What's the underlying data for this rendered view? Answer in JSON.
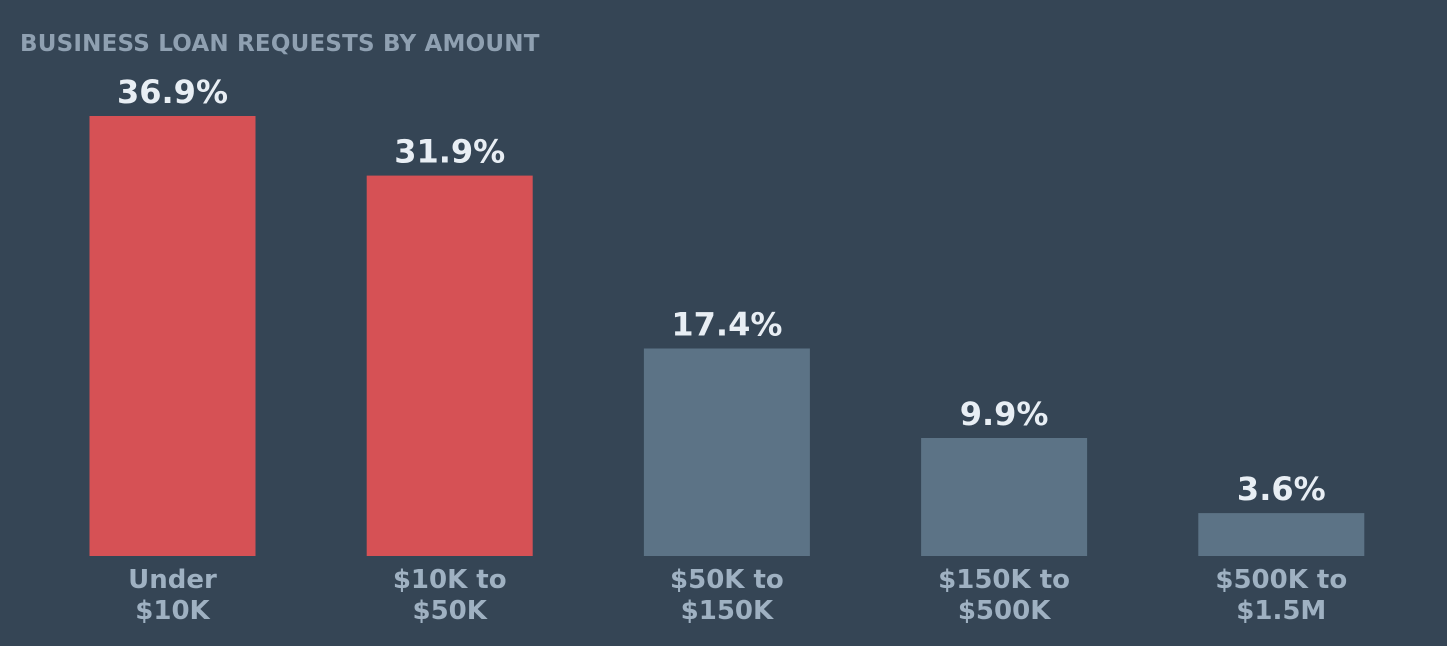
{
  "chart_data": {
    "type": "bar",
    "title": "BUSINESS LOAN REQUESTS BY AMOUNT",
    "categories": [
      [
        "Under",
        "$10K"
      ],
      [
        "$10K to",
        "$50K"
      ],
      [
        "$50K to",
        "$150K"
      ],
      [
        "$150K to",
        "$500K"
      ],
      [
        "$500K to",
        "$1.5M"
      ]
    ],
    "values": [
      36.9,
      31.9,
      17.4,
      9.9,
      3.6
    ],
    "value_labels": [
      "36.9%",
      "31.9%",
      "17.4%",
      "9.9%",
      "3.6%"
    ],
    "bar_colors": [
      "#d65155",
      "#d65155",
      "#5c7386",
      "#5c7386",
      "#5c7386"
    ],
    "ylim": [
      0,
      36.9
    ],
    "xlabel": "",
    "ylabel": "",
    "grid": false,
    "legend": "none",
    "colors": {
      "background": "#354555",
      "highlight": "#d65155",
      "muted": "#5c7386",
      "title": "#8fa0b1",
      "value_text": "#e8eef4",
      "category_text": "#9fb1c2"
    }
  }
}
